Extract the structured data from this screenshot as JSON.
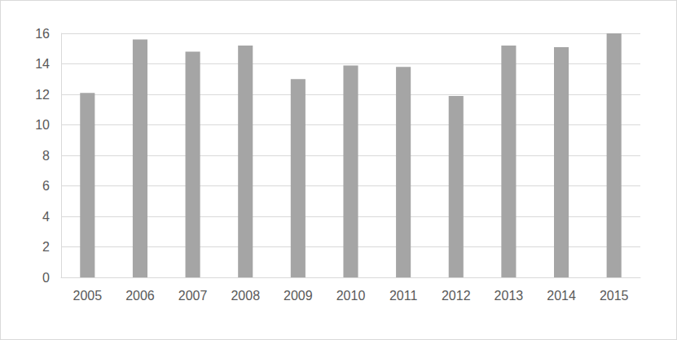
{
  "chart_data": {
    "type": "bar",
    "categories": [
      "2005",
      "2006",
      "2007",
      "2008",
      "2009",
      "2010",
      "2011",
      "2012",
      "2013",
      "2014",
      "2015"
    ],
    "values": [
      12.1,
      15.6,
      14.8,
      15.2,
      13.0,
      13.9,
      13.8,
      11.9,
      15.2,
      15.1,
      16.0
    ],
    "color": "#a5a5a5",
    "ylim": [
      0,
      16
    ],
    "yticks": [
      0,
      2,
      4,
      6,
      8,
      10,
      12,
      14,
      16
    ],
    "grid": true
  }
}
